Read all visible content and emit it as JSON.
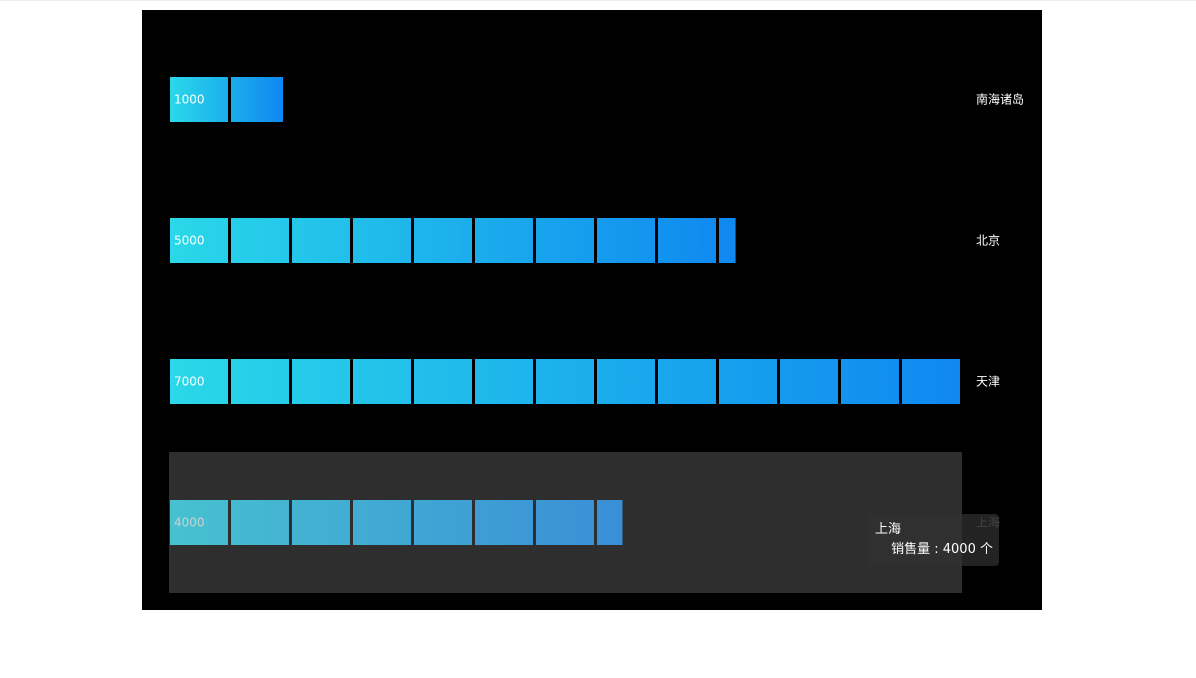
{
  "chart_data": {
    "type": "bar",
    "orientation": "horizontal",
    "categories": [
      "南海诸岛",
      "北京",
      "天津",
      "上海"
    ],
    "values": [
      1000,
      5000,
      7000,
      4000
    ],
    "xlim": [
      0,
      7000
    ],
    "grid": false,
    "style": "pictorial-segmented",
    "gradient_colors": [
      "#2ad8e8",
      "#0f88f0"
    ],
    "highlighted_category": "上海"
  },
  "tooltip": {
    "title": "上海",
    "series_name": "销售量",
    "separator": " : ",
    "value": "4000",
    "unit": " 个"
  },
  "colors": {
    "panel_background": "#000000",
    "hover_band": "#2e2e2e",
    "label_text": "#ffffff"
  }
}
